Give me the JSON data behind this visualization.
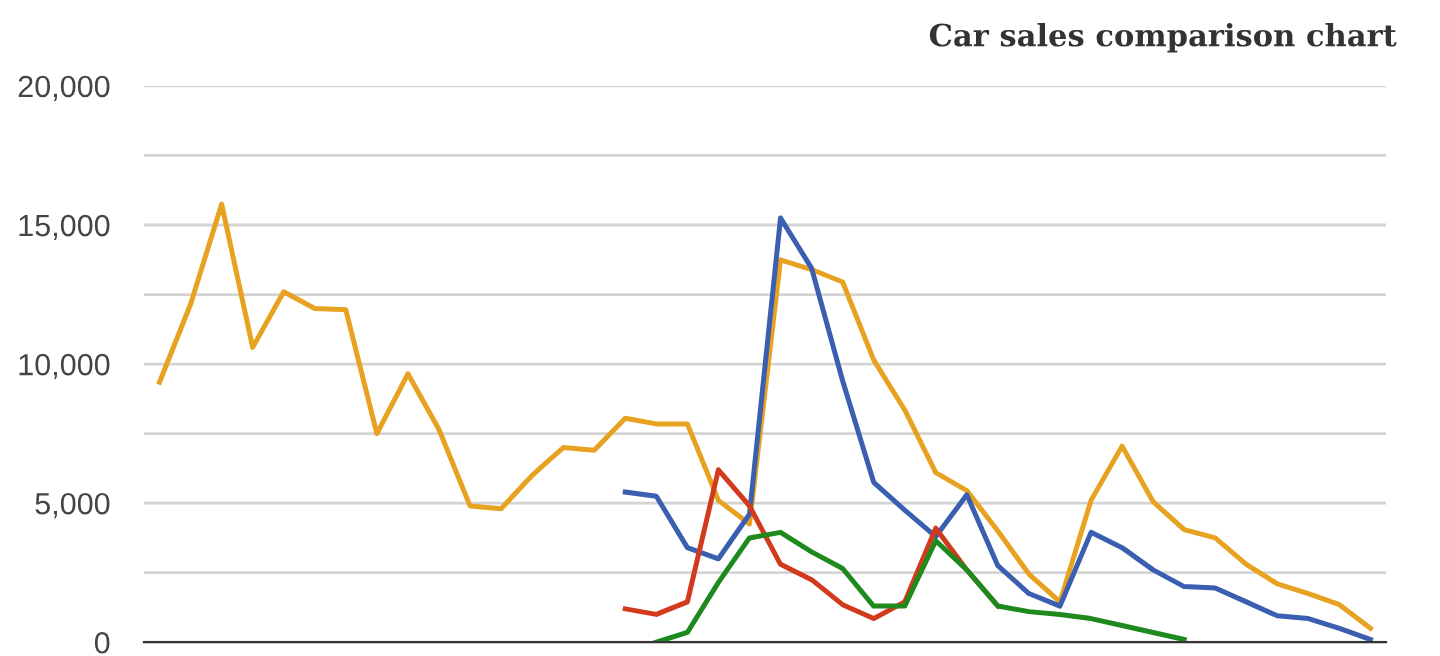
{
  "chart_data": {
    "type": "line",
    "title": "Car sales comparison chart",
    "categories": [
      null,
      null,
      null,
      null,
      null,
      null,
      null,
      null,
      null,
      null,
      null,
      null,
      null,
      null,
      null,
      null,
      null,
      null,
      null,
      null,
      null,
      null,
      null,
      null,
      null,
      null,
      null,
      null,
      null,
      null,
      null,
      null,
      null,
      null,
      null,
      null,
      null,
      null,
      null,
      null
    ],
    "series": [
      {
        "color": "#e8a221",
        "values": [
          9350,
          12150,
          15750,
          10600,
          12600,
          12000,
          11950,
          7500,
          9650,
          7650,
          4900,
          4800,
          6000,
          7000,
          6900,
          8050,
          7850,
          7850,
          5100,
          4250,
          13750,
          13400,
          12950,
          10150,
          8350,
          6100,
          5450,
          4000,
          2450,
          1450,
          5100,
          7050,
          5050,
          4050,
          3750,
          2800,
          2100,
          1750,
          1350,
          500
        ]
      },
      {
        "color": "#3a5fb0",
        "values": [
          null,
          null,
          null,
          null,
          null,
          null,
          null,
          null,
          null,
          null,
          null,
          null,
          null,
          null,
          null,
          5400,
          5250,
          3400,
          3000,
          4600,
          15250,
          13450,
          9400,
          5750,
          4750,
          3800,
          5300,
          2750,
          1750,
          1300,
          3950,
          3400,
          2600,
          2000,
          1950,
          1450,
          950,
          850,
          500,
          100
        ]
      },
      {
        "color": "#d23a1e",
        "values": [
          null,
          null,
          null,
          null,
          null,
          null,
          null,
          null,
          null,
          null,
          null,
          null,
          null,
          null,
          null,
          1200,
          1000,
          1450,
          6200,
          4900,
          2800,
          2250,
          1350,
          850,
          1450,
          4100,
          2600,
          1300,
          null,
          null,
          null,
          null,
          null,
          null,
          null,
          null,
          null,
          null,
          null,
          null
        ]
      },
      {
        "color": "#1e8a1e",
        "values": [
          null,
          null,
          null,
          null,
          null,
          null,
          null,
          null,
          null,
          null,
          null,
          null,
          null,
          null,
          null,
          null,
          0,
          350,
          2150,
          3750,
          3950,
          3250,
          2650,
          1300,
          1300,
          3650,
          2600,
          1300,
          1100,
          1000,
          850,
          600,
          350,
          100,
          null,
          null,
          null,
          null,
          null,
          null
        ]
      }
    ],
    "ylim": [
      0,
      20000
    ],
    "yticks": [
      0,
      {
        "value": 2500,
        "label": null
      },
      {
        "value": 5000,
        "label": "5,000"
      },
      {
        "value": 7500,
        "label": null
      },
      {
        "value": 10000,
        "label": "10,000"
      },
      {
        "value": 12500,
        "label": null
      },
      {
        "value": 15000,
        "label": "15,000"
      },
      {
        "value": 17500,
        "label": null
      },
      {
        "value": 20000,
        "label": "20,000"
      }
    ],
    "grid": "y",
    "legend": false,
    "marker": "none",
    "line_style": "solid"
  }
}
